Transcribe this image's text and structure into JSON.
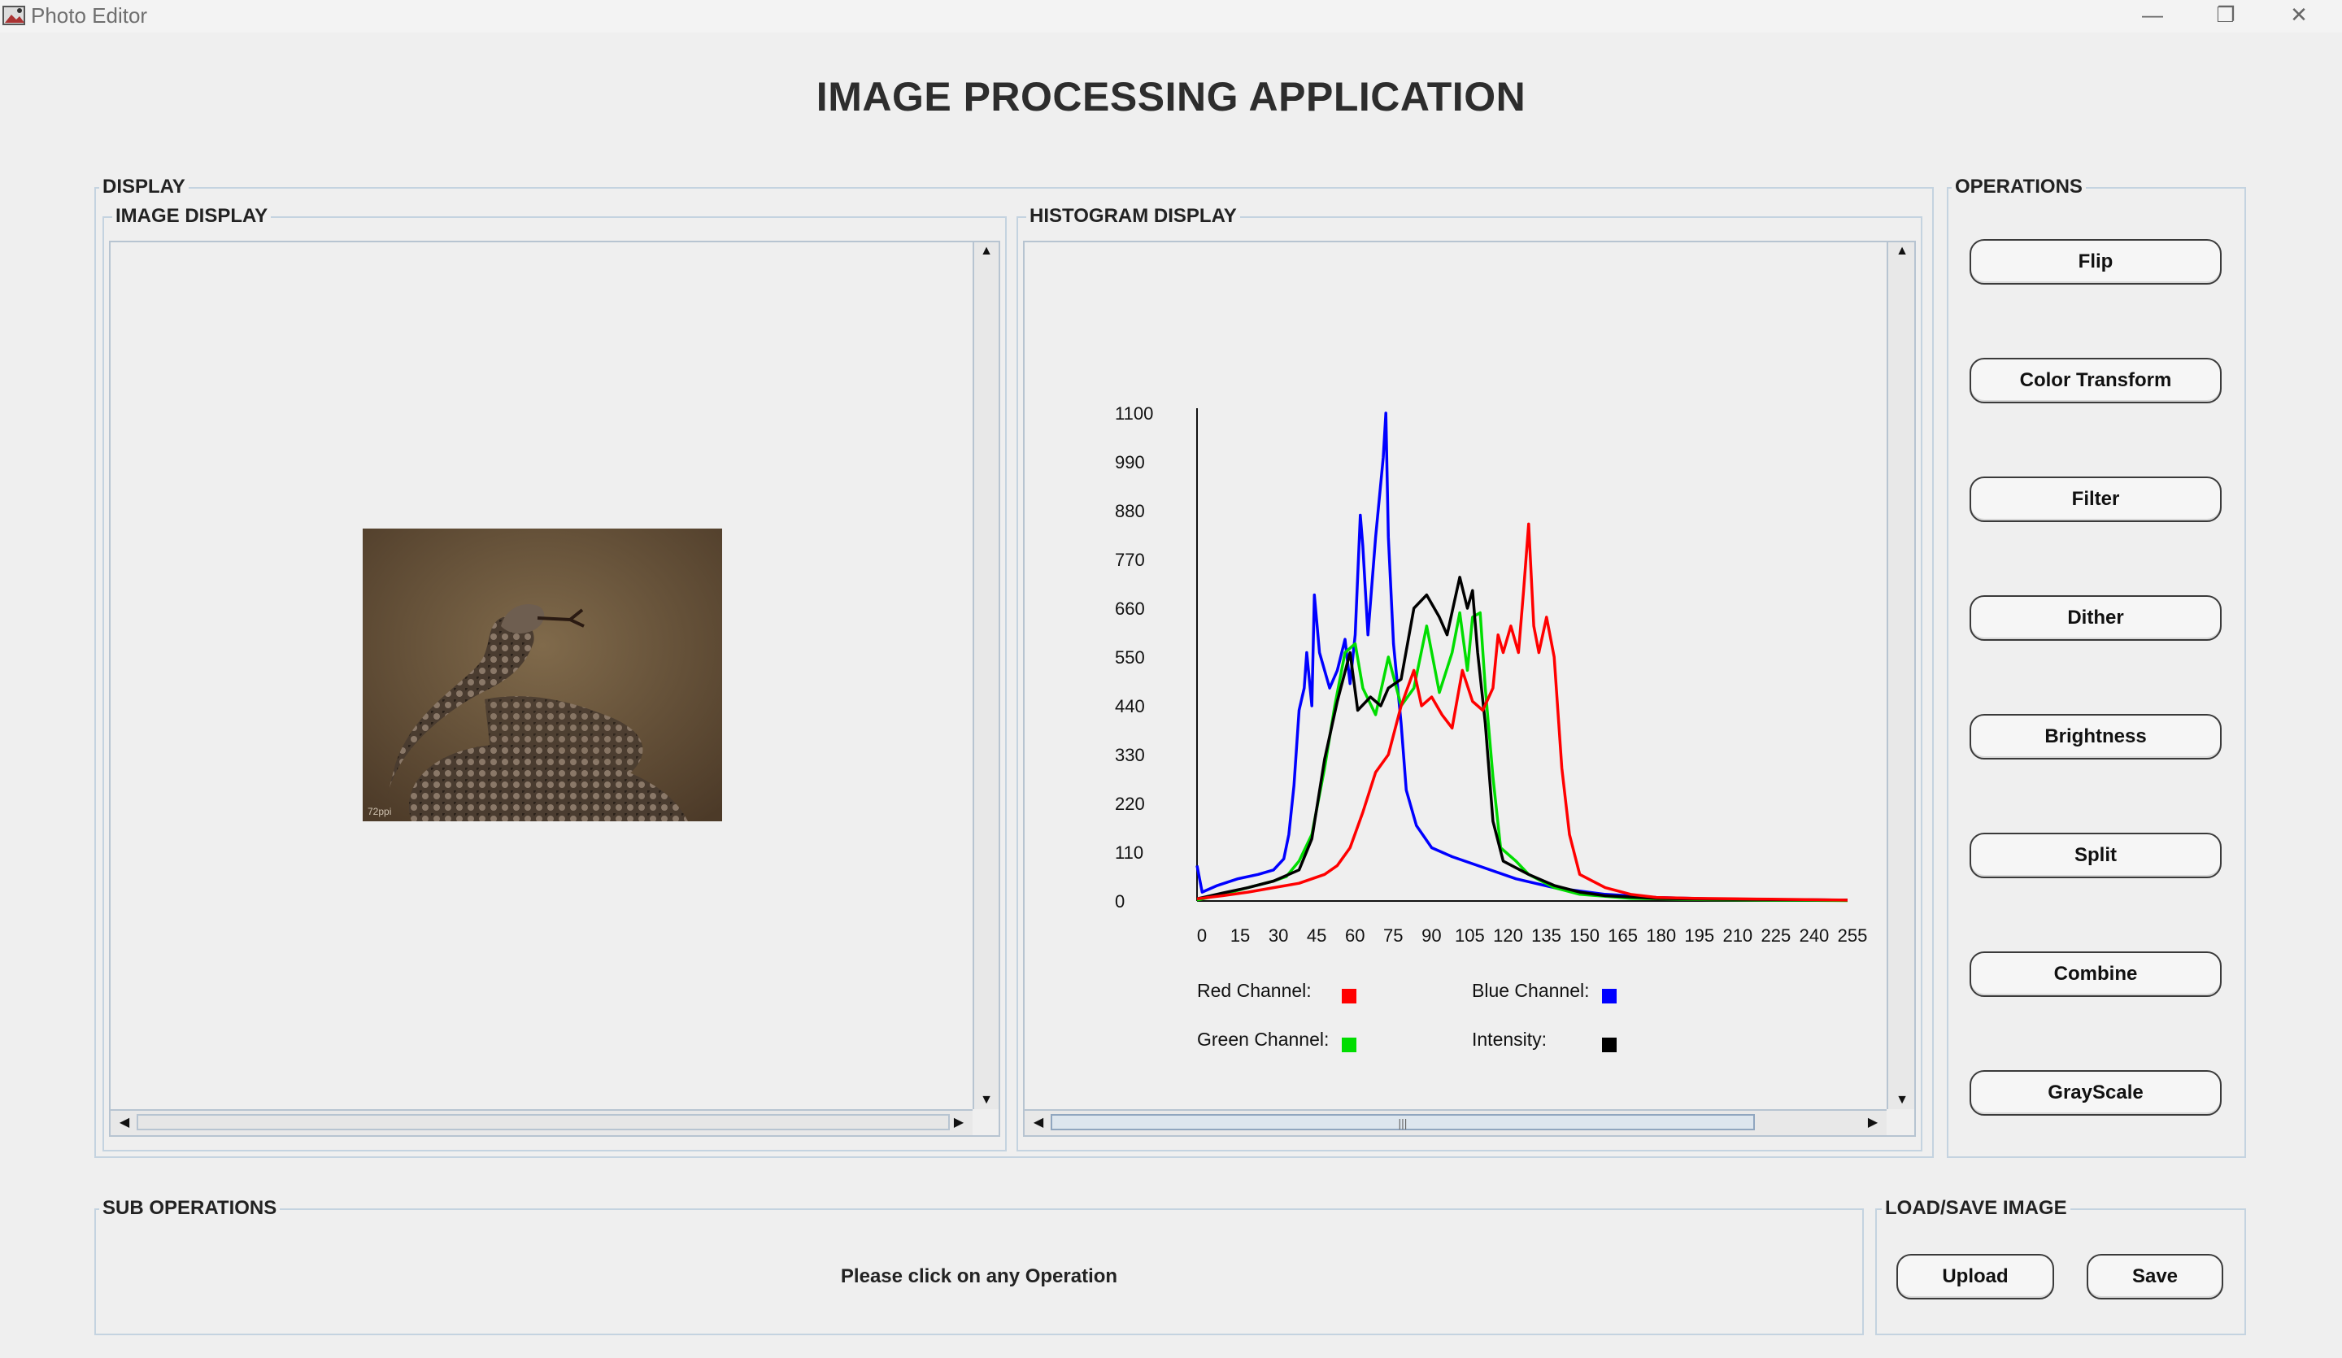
{
  "window": {
    "title": "Photo Editor",
    "minimize_icon": "minimize-icon",
    "maximize_icon": "restore-icon",
    "close_icon": "close-icon"
  },
  "header": {
    "title": "IMAGE PROCESSING APPLICATION"
  },
  "display": {
    "label": "DISPLAY",
    "image_panel": {
      "label": "IMAGE DISPLAY",
      "watermark": "72ppi"
    },
    "histogram_panel": {
      "label": "HISTOGRAM DISPLAY"
    }
  },
  "operations": {
    "label": "OPERATIONS",
    "buttons": [
      "Flip",
      "Color Transform",
      "Filter",
      "Dither",
      "Brightness",
      "Split",
      "Combine",
      "GrayScale"
    ]
  },
  "sub_operations": {
    "label": "SUB OPERATIONS",
    "status": "Please click on any Operation"
  },
  "load_save": {
    "label": "LOAD/SAVE IMAGE",
    "upload_label": "Upload",
    "save_label": "Save"
  },
  "colors": {
    "red": "#ff0000",
    "green": "#00dd00",
    "blue": "#0000ff",
    "intensity": "#000000",
    "border": "#c4d3e0"
  },
  "chart_data": {
    "type": "line",
    "title": "",
    "xlabel": "",
    "ylabel": "",
    "xlim": [
      0,
      255
    ],
    "ylim": [
      0,
      1100
    ],
    "x_ticks": [
      "0",
      "15",
      "30",
      "45",
      "60",
      "75",
      "90",
      "105",
      "120",
      "135",
      "150",
      "165",
      "180",
      "195",
      "210",
      "225",
      "240",
      "255"
    ],
    "y_ticks": [
      "0",
      "110",
      "220",
      "330",
      "440",
      "550",
      "660",
      "770",
      "880",
      "990",
      "1100"
    ],
    "legend": [
      {
        "label": "Red Channel:",
        "color": "#ff0000"
      },
      {
        "label": "Blue Channel:",
        "color": "#0000ff"
      },
      {
        "label": "Green Channel:",
        "color": "#00dd00"
      },
      {
        "label": "Intensity:",
        "color": "#000000"
      }
    ],
    "series": [
      {
        "color": "#0000ff",
        "points": [
          [
            0,
            80
          ],
          [
            2,
            20
          ],
          [
            8,
            35
          ],
          [
            16,
            50
          ],
          [
            24,
            60
          ],
          [
            30,
            70
          ],
          [
            34,
            95
          ],
          [
            36,
            150
          ],
          [
            38,
            260
          ],
          [
            40,
            430
          ],
          [
            42,
            480
          ],
          [
            43,
            560
          ],
          [
            45,
            440
          ],
          [
            46,
            690
          ],
          [
            48,
            560
          ],
          [
            52,
            480
          ],
          [
            55,
            520
          ],
          [
            58,
            590
          ],
          [
            60,
            490
          ],
          [
            62,
            600
          ],
          [
            64,
            870
          ],
          [
            65,
            800
          ],
          [
            67,
            600
          ],
          [
            70,
            820
          ],
          [
            73,
            1000
          ],
          [
            74,
            1100
          ],
          [
            75,
            820
          ],
          [
            77,
            580
          ],
          [
            80,
            400
          ],
          [
            82,
            250
          ],
          [
            86,
            170
          ],
          [
            92,
            120
          ],
          [
            100,
            100
          ],
          [
            110,
            80
          ],
          [
            125,
            50
          ],
          [
            140,
            30
          ],
          [
            160,
            15
          ],
          [
            180,
            8
          ],
          [
            200,
            5
          ],
          [
            230,
            3
          ],
          [
            255,
            2
          ]
        ]
      },
      {
        "color": "#00dd00",
        "points": [
          [
            0,
            2
          ],
          [
            10,
            15
          ],
          [
            20,
            30
          ],
          [
            30,
            45
          ],
          [
            35,
            55
          ],
          [
            40,
            90
          ],
          [
            45,
            150
          ],
          [
            50,
            300
          ],
          [
            54,
            440
          ],
          [
            58,
            560
          ],
          [
            62,
            580
          ],
          [
            65,
            480
          ],
          [
            70,
            420
          ],
          [
            75,
            550
          ],
          [
            80,
            440
          ],
          [
            85,
            480
          ],
          [
            90,
            620
          ],
          [
            95,
            470
          ],
          [
            100,
            560
          ],
          [
            103,
            650
          ],
          [
            106,
            520
          ],
          [
            108,
            640
          ],
          [
            111,
            650
          ],
          [
            113,
            480
          ],
          [
            116,
            280
          ],
          [
            119,
            120
          ],
          [
            125,
            90
          ],
          [
            130,
            60
          ],
          [
            140,
            30
          ],
          [
            150,
            15
          ],
          [
            170,
            6
          ],
          [
            200,
            3
          ],
          [
            255,
            1
          ]
        ]
      },
      {
        "color": "#000000",
        "points": [
          [
            0,
            5
          ],
          [
            10,
            18
          ],
          [
            20,
            30
          ],
          [
            30,
            45
          ],
          [
            40,
            70
          ],
          [
            45,
            140
          ],
          [
            50,
            320
          ],
          [
            55,
            450
          ],
          [
            60,
            560
          ],
          [
            63,
            430
          ],
          [
            68,
            460
          ],
          [
            72,
            440
          ],
          [
            75,
            480
          ],
          [
            80,
            500
          ],
          [
            85,
            660
          ],
          [
            90,
            690
          ],
          [
            95,
            640
          ],
          [
            98,
            600
          ],
          [
            103,
            730
          ],
          [
            106,
            660
          ],
          [
            108,
            700
          ],
          [
            110,
            560
          ],
          [
            113,
            400
          ],
          [
            116,
            180
          ],
          [
            120,
            90
          ],
          [
            130,
            60
          ],
          [
            140,
            35
          ],
          [
            150,
            20
          ],
          [
            160,
            12
          ],
          [
            180,
            6
          ],
          [
            200,
            4
          ],
          [
            255,
            2
          ]
        ]
      },
      {
        "color": "#ff0000",
        "points": [
          [
            0,
            5
          ],
          [
            10,
            12
          ],
          [
            20,
            20
          ],
          [
            30,
            30
          ],
          [
            40,
            40
          ],
          [
            50,
            60
          ],
          [
            55,
            80
          ],
          [
            60,
            120
          ],
          [
            65,
            200
          ],
          [
            70,
            290
          ],
          [
            75,
            330
          ],
          [
            80,
            440
          ],
          [
            85,
            520
          ],
          [
            88,
            440
          ],
          [
            92,
            460
          ],
          [
            96,
            420
          ],
          [
            100,
            390
          ],
          [
            104,
            520
          ],
          [
            108,
            450
          ],
          [
            112,
            430
          ],
          [
            116,
            480
          ],
          [
            118,
            600
          ],
          [
            120,
            560
          ],
          [
            123,
            620
          ],
          [
            126,
            560
          ],
          [
            128,
            700
          ],
          [
            130,
            850
          ],
          [
            132,
            620
          ],
          [
            134,
            560
          ],
          [
            137,
            640
          ],
          [
            140,
            550
          ],
          [
            143,
            300
          ],
          [
            146,
            150
          ],
          [
            150,
            60
          ],
          [
            160,
            30
          ],
          [
            170,
            15
          ],
          [
            180,
            8
          ],
          [
            195,
            6
          ],
          [
            210,
            5
          ],
          [
            225,
            4
          ],
          [
            255,
            2
          ]
        ]
      }
    ]
  }
}
